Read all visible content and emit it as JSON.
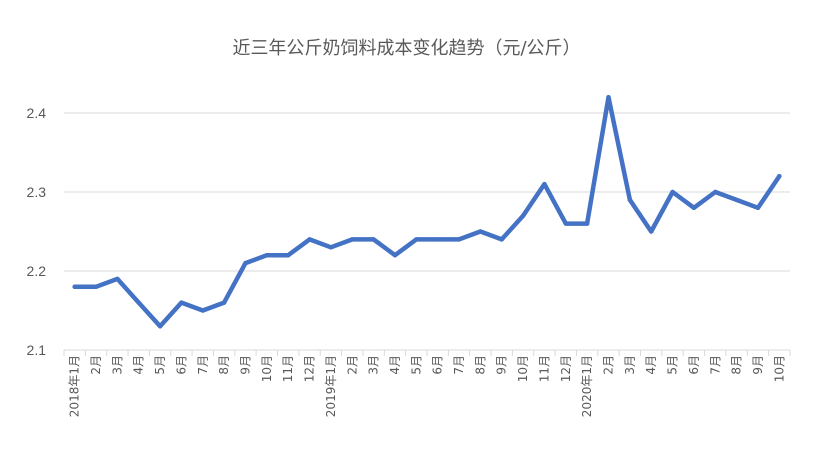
{
  "chart_data": {
    "type": "line",
    "title": "近三年公斤奶饲料成本变化趋势（元/公斤）",
    "xlabel": "",
    "ylabel": "",
    "ylim": [
      2.1,
      2.4
    ],
    "yticks": [
      "2.1",
      "2.2",
      "2.3",
      "2.4"
    ],
    "grid": true,
    "legend": "none",
    "colors": {
      "line": "#4472c4",
      "grid": "#d9d9d9",
      "text": "#595959"
    },
    "categories": [
      "2018年1月",
      "2月",
      "3月",
      "4月",
      "5月",
      "6月",
      "7月",
      "8月",
      "9月",
      "10月",
      "11月",
      "12月",
      "2019年1月",
      "2月",
      "3月",
      "4月",
      "5月",
      "6月",
      "7月",
      "8月",
      "9月",
      "10月",
      "11月",
      "12月",
      "2020年1月",
      "2月",
      "3月",
      "4月",
      "5月",
      "6月",
      "7月",
      "8月",
      "9月",
      "10月"
    ],
    "series": [
      {
        "values": [
          2.18,
          2.18,
          2.19,
          2.16,
          2.13,
          2.16,
          2.15,
          2.16,
          2.21,
          2.22,
          2.22,
          2.24,
          2.23,
          2.24,
          2.24,
          2.22,
          2.24,
          2.24,
          2.24,
          2.25,
          2.24,
          2.27,
          2.31,
          2.26,
          2.26,
          2.42,
          2.29,
          2.25,
          2.3,
          2.28,
          2.3,
          2.29,
          2.28,
          2.32
        ]
      }
    ]
  }
}
